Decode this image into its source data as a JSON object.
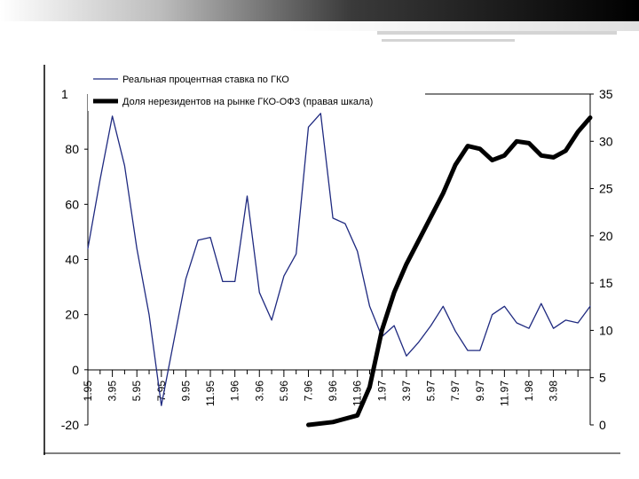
{
  "chart_data": {
    "type": "line",
    "title": "",
    "left_axis_top_label": "1",
    "y_left": {
      "min": -20,
      "max": 100,
      "ticks": [
        -20,
        0,
        20,
        40,
        60,
        80
      ]
    },
    "y_right": {
      "min": 0,
      "max": 35,
      "ticks": [
        0,
        5,
        10,
        15,
        20,
        25,
        30,
        35
      ]
    },
    "categories": [
      "1.95",
      "3.95",
      "5.95",
      "7.95",
      "9.95",
      "11.95",
      "1.96",
      "3.96",
      "5.96",
      "7.96",
      "9.96",
      "11.96",
      "1.97",
      "3.97",
      "5.97",
      "7.97",
      "9.97",
      "11.97",
      "1.98",
      "3.98"
    ],
    "legend": [
      {
        "label": "Реальная процентная ставка по ГКО",
        "color": "#1f2a80",
        "style": "thin"
      },
      {
        "label": "Доля нерезидентов на рынке ГКО-ОФЗ (правая шкала)",
        "color": "#000000",
        "style": "thick"
      }
    ],
    "series": [
      {
        "name": "Реальная процентная ставка по ГКО",
        "axis": "left",
        "color": "#1f2a80",
        "points": [
          [
            0,
            44
          ],
          [
            1,
            69
          ],
          [
            2,
            92
          ],
          [
            3,
            74
          ],
          [
            4,
            44
          ],
          [
            5,
            20
          ],
          [
            6,
            -13
          ],
          [
            7,
            10
          ],
          [
            8,
            33
          ],
          [
            9,
            47
          ],
          [
            10,
            48
          ],
          [
            11,
            32
          ],
          [
            12,
            32
          ],
          [
            13,
            63
          ],
          [
            14,
            28
          ],
          [
            15,
            18
          ],
          [
            16,
            34
          ],
          [
            17,
            42
          ],
          [
            18,
            88
          ],
          [
            19,
            93
          ],
          [
            20,
            55
          ],
          [
            21,
            53
          ],
          [
            22,
            43
          ],
          [
            23,
            23
          ],
          [
            24,
            12
          ],
          [
            25,
            16
          ],
          [
            26,
            5
          ],
          [
            27,
            10
          ],
          [
            28,
            16
          ],
          [
            29,
            23
          ],
          [
            30,
            14
          ],
          [
            31,
            7
          ],
          [
            32,
            7
          ],
          [
            33,
            20
          ],
          [
            34,
            23
          ],
          [
            35,
            17
          ],
          [
            36,
            15
          ],
          [
            37,
            24
          ],
          [
            38,
            15
          ],
          [
            39,
            18
          ],
          [
            40,
            17
          ],
          [
            41,
            23
          ]
        ]
      },
      {
        "name": "Доля нерезидентов на рынке ГКО-ОФЗ (правая шкала)",
        "axis": "right",
        "color": "#000000",
        "points": [
          [
            18,
            0
          ],
          [
            20,
            0.3
          ],
          [
            22,
            1.0
          ],
          [
            23,
            4.0
          ],
          [
            24,
            10.0
          ],
          [
            25,
            14.0
          ],
          [
            26,
            17.0
          ],
          [
            27,
            19.5
          ],
          [
            28,
            22.0
          ],
          [
            29,
            24.5
          ],
          [
            30,
            27.5
          ],
          [
            31,
            29.5
          ],
          [
            32,
            29.2
          ],
          [
            33,
            28.0
          ],
          [
            34,
            28.5
          ],
          [
            35,
            30.0
          ],
          [
            36,
            29.8
          ],
          [
            37,
            28.5
          ],
          [
            38,
            28.3
          ],
          [
            39,
            29.0
          ],
          [
            40,
            31.0
          ],
          [
            41,
            32.5
          ]
        ]
      }
    ]
  }
}
